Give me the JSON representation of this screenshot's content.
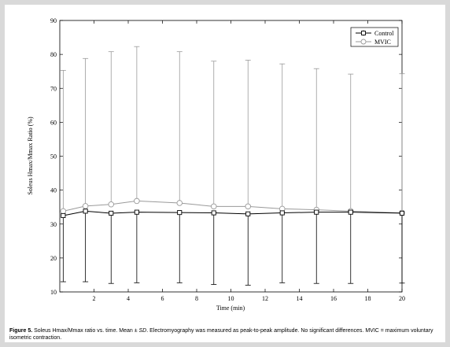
{
  "chart_data": {
    "type": "line",
    "title": "",
    "xlabel": "Time (min)",
    "ylabel": "Soleus Hmax/Mmax Ratio (%)",
    "xlim": [
      0,
      20
    ],
    "ylim": [
      10,
      90
    ],
    "xticks": [
      2,
      4,
      6,
      8,
      10,
      12,
      14,
      16,
      18,
      20
    ],
    "yticks": [
      10,
      20,
      30,
      40,
      50,
      60,
      70,
      80,
      90
    ],
    "legend_position": "top-right",
    "grid": false,
    "series": [
      {
        "name": "Control",
        "color": "#000000",
        "marker": "square",
        "x": [
          0.2,
          1.5,
          3,
          4.5,
          7,
          9,
          11,
          13,
          15,
          17,
          20
        ],
        "y": [
          32.5,
          33.8,
          33.2,
          33.5,
          33.4,
          33.3,
          33.0,
          33.3,
          33.5,
          33.5,
          33.2
        ],
        "err_low": [
          13,
          13,
          12.5,
          12.7,
          12.7,
          12.2,
          12.0,
          12.7,
          12.5,
          12.5,
          12.6
        ]
      },
      {
        "name": "MVIC",
        "color": "#9a9a9a",
        "marker": "circle",
        "x": [
          0.2,
          1.5,
          3,
          4.5,
          7,
          9,
          11,
          13,
          15,
          17,
          20
        ],
        "y": [
          33.8,
          35.3,
          35.8,
          36.8,
          36.2,
          35.2,
          35.2,
          34.5,
          34.2,
          33.8,
          33.3
        ],
        "err_high": [
          75.3,
          78.8,
          80.8,
          82.3,
          80.8,
          78.0,
          78.3,
          77.2,
          75.8,
          74.2,
          74.3
        ]
      }
    ]
  },
  "caption": {
    "figure_number": "Figure 5.",
    "text_before_sd": " Soleus Hmax/Mmax ratio vs. time. Mean ± ",
    "sd": "SD",
    "text_after_sd": ". Electromyography was measured as peak-to-peak amplitude. No significant differences. MVIC = maximum voluntary isometric contraction."
  }
}
